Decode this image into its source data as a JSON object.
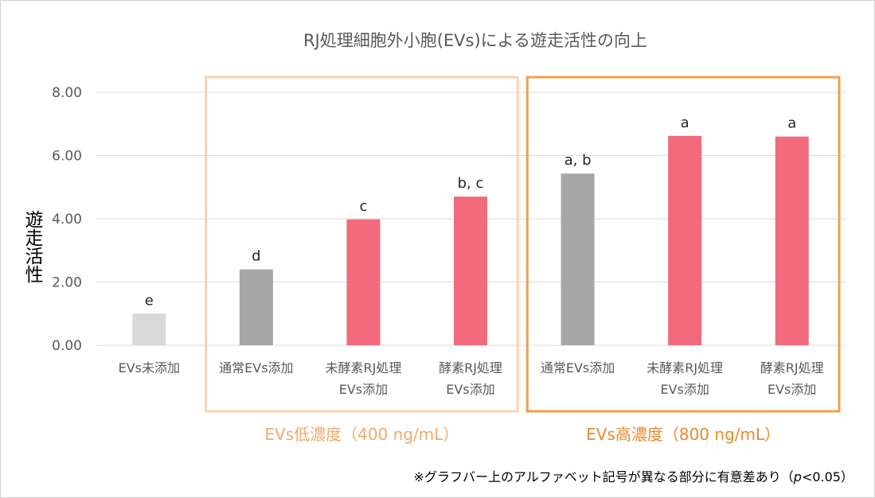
{
  "chart_data": {
    "type": "bar",
    "title": "RJ処理細胞外小胞(EVs)による遊走活性の向上",
    "ylabel": "遊走活性",
    "ylim": [
      0,
      8
    ],
    "yticks": [
      0,
      2,
      4,
      6,
      8
    ],
    "ytick_labels": [
      "0.00",
      "2.00",
      "4.00",
      "6.00",
      "8.00"
    ],
    "grid": true,
    "categories": [
      [
        "EVs未添加"
      ],
      [
        "通常EVs添加"
      ],
      [
        "未酵素RJ処理",
        "EVs添加"
      ],
      [
        "酵素RJ処理",
        "EVs添加"
      ],
      [
        "通常EVs添加"
      ],
      [
        "未酵素RJ処理",
        "EVs添加"
      ],
      [
        "酵素RJ処理",
        "EVs添加"
      ]
    ],
    "values": [
      1.0,
      2.4,
      3.98,
      4.7,
      5.43,
      6.62,
      6.6
    ],
    "significance_labels": [
      "e",
      "d",
      "c",
      "b, c",
      "a, b",
      "a",
      "a"
    ],
    "bar_colors": [
      "#d9d9d9",
      "#a6a6a6",
      "#f26a7b",
      "#f26a7b",
      "#a6a6a6",
      "#f26a7b",
      "#f26a7b"
    ],
    "groups": [
      {
        "label": "EVs低濃度（400 ng/mL）",
        "first": 1,
        "last": 3,
        "color": "#f9d3b2",
        "label_color": "#f3a96b"
      },
      {
        "label": "EVs高濃度（800 ng/mL）",
        "first": 4,
        "last": 6,
        "color": "#f0a04c",
        "label_color": "#e9892d"
      }
    ],
    "footnote": {
      "prefix": "※グラフバー上のアルファベット記号が異なる部分に有意差あり（",
      "p": "p",
      "suffix": "<0.05）"
    }
  }
}
